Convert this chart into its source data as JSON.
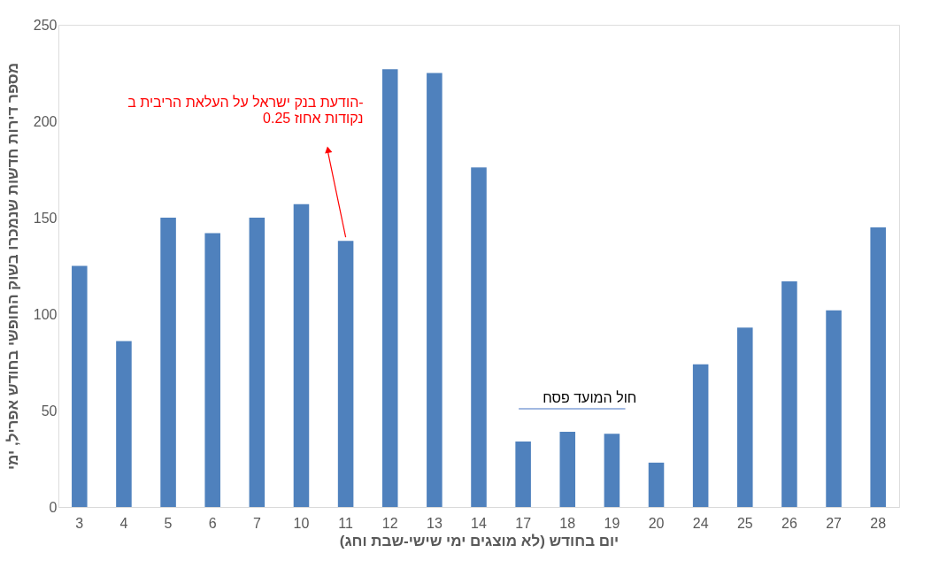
{
  "chart_data": {
    "type": "bar",
    "xlabel": "יום בחודש (לא מוצגים ימי שישי-שבת וחג)",
    "ylabel": "מספר דירות חדשות שנמכרו בשוק החופשי בחודש אפריל, ימי",
    "categories": [
      "3",
      "4",
      "5",
      "6",
      "7",
      "10",
      "11",
      "12",
      "13",
      "14",
      "17",
      "18",
      "19",
      "20",
      "24",
      "25",
      "26",
      "27",
      "28"
    ],
    "values": [
      125,
      86,
      150,
      142,
      150,
      157,
      138,
      227,
      225,
      176,
      34,
      39,
      38,
      23,
      74,
      93,
      117,
      102,
      145
    ],
    "color": "#4f81bd",
    "ylim": [
      0,
      250
    ],
    "yticks": [
      0,
      50,
      100,
      150,
      200,
      250
    ],
    "grid": false,
    "annotations": [
      "הודעת בנק ישראל על העלאת הריבית ב-\n0.25 נקודות אחוז",
      "חול המועד פסח"
    ]
  }
}
